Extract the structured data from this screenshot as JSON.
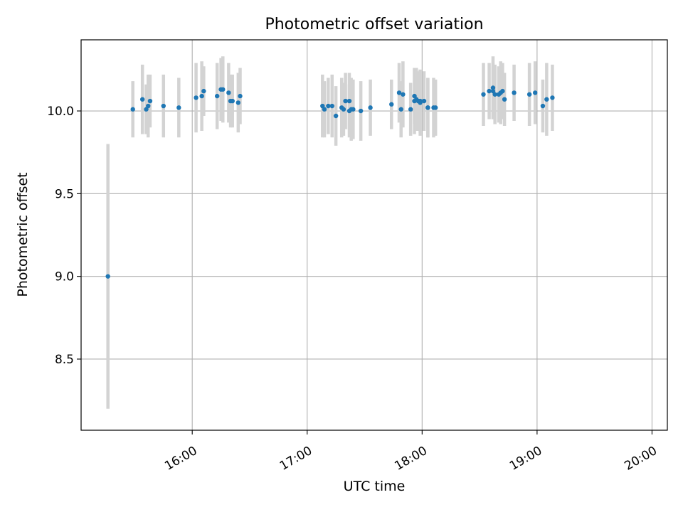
{
  "chart_data": {
    "type": "scatter",
    "title": "Photometric offset variation",
    "xlabel": "UTC time",
    "ylabel": "Photometric offset",
    "x_unit": "UTC time (HH:MM)",
    "xlim": [
      "15:02",
      "20:08"
    ],
    "ylim": [
      8.07,
      10.43
    ],
    "x_ticks": [
      "16:00",
      "17:00",
      "18:00",
      "19:00",
      "20:00"
    ],
    "y_ticks": [
      8.5,
      9.0,
      9.5,
      10.0
    ],
    "y_tick_labels": [
      "8.5",
      "9.0",
      "9.5",
      "10.0"
    ],
    "grid": true,
    "marker_color": "#1f77b4",
    "errorbar_color": "#d3d3d3",
    "series": [
      {
        "x": [
          "15:16",
          "15:29",
          "15:34",
          "15:36",
          "15:37",
          "15:38",
          "15:45",
          "15:53",
          "16:02",
          "16:05",
          "16:06",
          "16:13",
          "16:15",
          "16:16",
          "16:19",
          "16:20",
          "16:21",
          "16:24",
          "16:25",
          "17:08",
          "17:09",
          "17:11",
          "17:13",
          "17:15",
          "17:18",
          "17:19",
          "17:20",
          "17:22",
          "17:22",
          "17:23",
          "17:24",
          "17:28",
          "17:33",
          "17:44",
          "17:48",
          "17:49",
          "17:50",
          "17:54",
          "17:56",
          "17:56",
          "17:57",
          "17:58",
          "17:59",
          "17:59",
          "18:01",
          "18:03",
          "18:03",
          "18:06",
          "18:07",
          "18:32",
          "18:35",
          "18:37",
          "18:37",
          "18:38",
          "18:40",
          "18:41",
          "18:42",
          "18:43",
          "18:48",
          "18:56",
          "18:59",
          "19:03",
          "19:05",
          "19:08"
        ],
        "y": [
          9.0,
          10.01,
          10.07,
          10.01,
          10.03,
          10.06,
          10.03,
          10.02,
          10.08,
          10.09,
          10.12,
          10.09,
          10.13,
          10.13,
          10.11,
          10.06,
          10.06,
          10.05,
          10.09,
          10.03,
          10.01,
          10.03,
          10.03,
          9.97,
          10.02,
          10.01,
          10.06,
          10.06,
          10.0,
          10.01,
          10.01,
          10.0,
          10.02,
          10.04,
          10.11,
          10.01,
          10.1,
          10.01,
          10.09,
          10.06,
          10.07,
          10.06,
          10.05,
          10.06,
          10.06,
          10.02,
          10.02,
          10.02,
          10.02,
          10.1,
          10.12,
          10.12,
          10.14,
          10.1,
          10.1,
          10.11,
          10.12,
          10.07,
          10.11,
          10.1,
          10.11,
          10.03,
          10.07,
          10.08
        ],
        "yerr": [
          0.8,
          0.17,
          0.21,
          0.15,
          0.19,
          0.16,
          0.19,
          0.18,
          0.21,
          0.21,
          0.15,
          0.2,
          0.19,
          0.2,
          0.18,
          0.16,
          0.16,
          0.18,
          0.17,
          0.19,
          0.17,
          0.17,
          0.19,
          0.18,
          0.18,
          0.16,
          0.17,
          0.17,
          0.16,
          0.19,
          0.18,
          0.18,
          0.17,
          0.15,
          0.18,
          0.17,
          0.2,
          0.16,
          0.17,
          0.2,
          0.19,
          0.18,
          0.2,
          0.19,
          0.18,
          0.18,
          0.18,
          0.18,
          0.17,
          0.19,
          0.17,
          0.17,
          0.19,
          0.18,
          0.17,
          0.19,
          0.17,
          0.16,
          0.17,
          0.19,
          0.19,
          0.16,
          0.22,
          0.2
        ]
      }
    ]
  }
}
